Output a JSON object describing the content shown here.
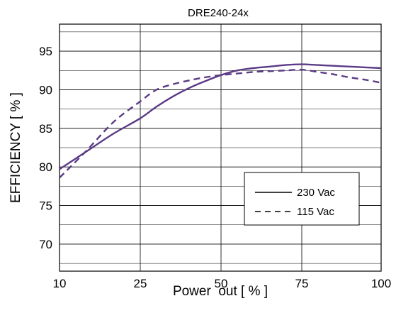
{
  "chart_data": {
    "type": "line",
    "title": "DRE240-24x",
    "xlabel": "Power  out [ % ]",
    "ylabel": "EFFICIENCY [ % ]",
    "x_ticks": [
      10,
      25,
      50,
      75,
      100
    ],
    "y_ticks": [
      70,
      75,
      80,
      85,
      90,
      95
    ],
    "xlim": [
      10,
      100
    ],
    "ylim": [
      66.5,
      98.5
    ],
    "grid": true,
    "legend_position": "bottom-right",
    "series": [
      {
        "name": "230 Vac",
        "style": "solid",
        "color": "#5b3a86",
        "x": [
          10,
          15,
          20,
          25,
          30,
          35,
          40,
          45,
          50,
          55,
          60,
          65,
          70,
          75,
          80,
          85,
          90,
          95,
          100
        ],
        "y": [
          79.7,
          82.0,
          84.3,
          86.3,
          87.8,
          89.1,
          90.2,
          91.1,
          91.9,
          92.5,
          92.8,
          93.0,
          93.2,
          93.3,
          93.2,
          93.1,
          93.0,
          92.9,
          92.8
        ]
      },
      {
        "name": "115 Vac",
        "style": "dashed",
        "color": "#5b3a86",
        "x": [
          10,
          15,
          20,
          25,
          30,
          35,
          40,
          45,
          50,
          55,
          60,
          65,
          70,
          75,
          80,
          85,
          90,
          95,
          100
        ],
        "y": [
          78.6,
          82.1,
          85.8,
          88.5,
          90.0,
          90.7,
          91.2,
          91.6,
          91.9,
          92.1,
          92.3,
          92.4,
          92.5,
          92.6,
          92.3,
          92.0,
          91.6,
          91.3,
          90.9
        ]
      }
    ]
  }
}
